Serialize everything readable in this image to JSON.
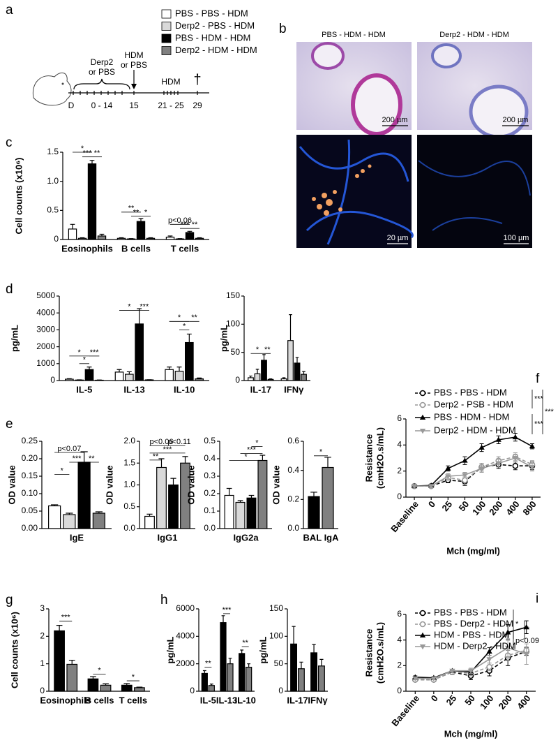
{
  "panel_labels": [
    "a",
    "b",
    "c",
    "d",
    "e",
    "f",
    "g",
    "h",
    "i"
  ],
  "legend": [
    {
      "name": "PBS - PBS - HDM",
      "color": "#ffffff"
    },
    {
      "name": "Derp2 - PBS - HDM",
      "color": "#d9d9d9"
    },
    {
      "name": "PBS - HDM - HDM",
      "color": "#000000"
    },
    {
      "name": "Derp2 - HDM - HDM",
      "color": "#808080"
    }
  ],
  "schematic": {
    "pretreatment": [
      "Derp2",
      "or PBS"
    ],
    "challenge": [
      "HDM",
      "or PBS"
    ],
    "exposure": "HDM",
    "days": [
      "D",
      "0 - 14",
      "15",
      "21 - 25",
      "29"
    ],
    "endpoint": "†"
  },
  "images": {
    "titles": [
      "PBS - HDM - HDM",
      "Derp2 - HDM - HDM"
    ],
    "scale_bars": [
      "200 µm",
      "200 µm",
      "20 µm",
      "100 µm"
    ]
  },
  "chart_data": [
    {
      "type": "bar",
      "ylabel": "Cell counts (x10⁶)",
      "categories": [
        "Eosinophils",
        "B cells",
        "T cells"
      ],
      "series": [
        {
          "color": "#ffffff",
          "values": [
            0.18,
            0.02,
            0.04
          ],
          "errors": [
            0.08,
            0.01,
            0.02
          ]
        },
        {
          "color": "#d9d9d9",
          "values": [
            0.02,
            0.01,
            0.01
          ],
          "errors": [
            0.01,
            0.005,
            0.005
          ]
        },
        {
          "color": "#000000",
          "values": [
            1.3,
            0.31,
            0.12
          ],
          "errors": [
            0.06,
            0.05,
            0.02
          ]
        },
        {
          "color": "#808080",
          "values": [
            0.06,
            0.02,
            0.02
          ],
          "errors": [
            0.03,
            0.01,
            0.01
          ]
        }
      ],
      "ylim": [
        0,
        1.5
      ],
      "yticks": [
        0,
        0.5,
        {
          "value": 1,
          "label": "1.0"
        },
        1.5
      ],
      "annotations": [
        "*",
        "***",
        "**",
        "**",
        "**",
        "*",
        "p<0.06",
        "***",
        "**"
      ]
    },
    {
      "type": "bar",
      "ylabel": "pg/mL",
      "categories": [
        "IL-5",
        "IL-13",
        "IL-10"
      ],
      "series": [
        {
          "color": "#ffffff",
          "values": [
            80,
            500,
            650
          ],
          "errors": [
            30,
            150,
            150
          ]
        },
        {
          "color": "#d9d9d9",
          "values": [
            30,
            370,
            550
          ],
          "errors": [
            10,
            150,
            250
          ]
        },
        {
          "color": "#000000",
          "values": [
            650,
            3350,
            2250
          ],
          "errors": [
            150,
            900,
            500
          ]
        },
        {
          "color": "#808080",
          "values": [
            20,
            40,
            100
          ],
          "errors": [
            10,
            10,
            50
          ]
        }
      ],
      "ylim": [
        0,
        5000
      ],
      "yticks": [
        0,
        1000,
        2000,
        3000,
        4000,
        5000
      ],
      "annotations": [
        "*",
        "*",
        "***",
        "*",
        "***",
        "*",
        "*",
        "**"
      ]
    },
    {
      "type": "bar",
      "ylabel": "pg/mL",
      "categories": [
        "IL-17",
        "IFNγ"
      ],
      "series": [
        {
          "color": "#ffffff",
          "values": [
            5,
            3
          ],
          "errors": [
            3,
            2
          ]
        },
        {
          "color": "#d9d9d9",
          "values": [
            12,
            71
          ],
          "errors": [
            8,
            46
          ]
        },
        {
          "color": "#000000",
          "values": [
            36,
            31
          ],
          "errors": [
            10,
            10
          ]
        },
        {
          "color": "#808080",
          "values": [
            2,
            11
          ],
          "errors": [
            1,
            5
          ]
        }
      ],
      "ylim": [
        0,
        150
      ],
      "yticks": [
        0,
        50,
        100,
        150
      ],
      "annotations": [
        "*",
        "**"
      ]
    },
    {
      "type": "bar",
      "ylabel": "OD value",
      "categories": [
        "IgE"
      ],
      "series": [
        {
          "color": "#ffffff",
          "values": [
            0.065
          ],
          "errors": [
            0.003
          ]
        },
        {
          "color": "#d9d9d9",
          "values": [
            0.04
          ],
          "errors": [
            0.004
          ]
        },
        {
          "color": "#000000",
          "values": [
            0.19
          ],
          "errors": [
            0.03
          ]
        },
        {
          "color": "#808080",
          "values": [
            0.044
          ],
          "errors": [
            0.004
          ]
        }
      ],
      "ylim": [
        0,
        0.25
      ],
      "yticks": [
        {
          "value": 0,
          "label": "0.00"
        },
        0.05,
        {
          "value": 0.1,
          "label": "0.10"
        },
        0.15,
        {
          "value": 0.2,
          "label": "0.20"
        },
        0.25
      ],
      "annotations": [
        "p<0.07",
        "***",
        "**",
        "*"
      ]
    },
    {
      "type": "bar",
      "ylabel": "OD value",
      "categories": [
        "IgG1"
      ],
      "series": [
        {
          "color": "#ffffff",
          "values": [
            0.28
          ],
          "errors": [
            0.05
          ]
        },
        {
          "color": "#d9d9d9",
          "values": [
            1.4
          ],
          "errors": [
            0.2
          ]
        },
        {
          "color": "#000000",
          "values": [
            1.0
          ],
          "errors": [
            0.15
          ]
        },
        {
          "color": "#808080",
          "values": [
            1.5
          ],
          "errors": [
            0.15
          ]
        }
      ],
      "ylim": [
        0,
        2
      ],
      "yticks": [
        {
          "value": 0,
          "label": "0.0"
        },
        0.5,
        {
          "value": 1,
          "label": "1.0"
        },
        1.5,
        {
          "value": 2,
          "label": "2.0"
        }
      ],
      "annotations": [
        "p<0.06",
        "p<0.11",
        "***",
        "**"
      ]
    },
    {
      "type": "bar",
      "ylabel": "OD value",
      "categories": [
        "IgG2a"
      ],
      "series": [
        {
          "color": "#ffffff",
          "values": [
            0.19
          ],
          "errors": [
            0.04
          ]
        },
        {
          "color": "#d9d9d9",
          "values": [
            0.15
          ],
          "errors": [
            0.01
          ]
        },
        {
          "color": "#000000",
          "values": [
            0.175
          ],
          "errors": [
            0.015
          ]
        },
        {
          "color": "#808080",
          "values": [
            0.39
          ],
          "errors": [
            0.03
          ]
        }
      ],
      "ylim": [
        0,
        0.5
      ],
      "yticks": [
        {
          "value": 0,
          "label": "0.0"
        },
        0.1,
        0.2,
        0.3,
        0.4,
        0.5
      ],
      "annotations": [
        "*",
        "***",
        "*"
      ]
    },
    {
      "type": "bar",
      "ylabel": "OD value",
      "categories": [
        "BAL IgA"
      ],
      "series": [
        {
          "color": "#000000",
          "values": [
            0.22
          ],
          "errors": [
            0.03
          ]
        },
        {
          "color": "#808080",
          "values": [
            0.42
          ],
          "errors": [
            0.07
          ]
        }
      ],
      "ylim": [
        0,
        0.6
      ],
      "yticks": [
        {
          "value": 0,
          "label": "0.0"
        },
        0.2,
        0.4,
        0.6
      ],
      "annotations": [
        "*"
      ]
    },
    {
      "type": "line",
      "ylabel": [
        "Resistance",
        "(cmH2O.s/mL)"
      ],
      "xlabel": "Mch (mg/ml)",
      "categories": [
        "Baseline",
        "0",
        "25",
        "50",
        "100",
        "200",
        "400",
        "800"
      ],
      "series": [
        {
          "name": "PBS - PBS - HDM",
          "color": "#000000",
          "marker": "circle-open",
          "dashed": true,
          "values": [
            0.85,
            0.85,
            1.3,
            1.2,
            2.3,
            2.5,
            2.4,
            2.4
          ],
          "errors": [
            0.1,
            0.1,
            0.2,
            0.3,
            0.3,
            0.3,
            0.3,
            0.3
          ]
        },
        {
          "name": "Derp2 - PSB - HDM",
          "color": "#999999",
          "marker": "circle-open",
          "dashed": true,
          "values": [
            0.85,
            0.85,
            1.5,
            1.3,
            2.3,
            2.8,
            3.1,
            2.5
          ],
          "errors": [
            0.1,
            0.1,
            0.2,
            0.3,
            0.3,
            0.3,
            0.3,
            0.3
          ]
        },
        {
          "name": "PBS - HDM - HDM",
          "color": "#000000",
          "marker": "triangle",
          "dashed": false,
          "values": [
            0.85,
            0.9,
            2.2,
            2.8,
            3.8,
            4.4,
            4.6,
            3.9
          ],
          "errors": [
            0.1,
            0.1,
            0.2,
            0.3,
            0.3,
            0.3,
            0.3,
            0.2
          ]
        },
        {
          "name": "Derp2 - HDM - HDM",
          "color": "#999999",
          "marker": "triangle-down",
          "dashed": false,
          "values": [
            0.85,
            0.85,
            1.6,
            1.7,
            2.2,
            2.6,
            3.0,
            2.3
          ],
          "errors": [
            0.1,
            0.1,
            0.2,
            0.2,
            0.3,
            0.3,
            0.3,
            0.3
          ]
        }
      ],
      "ylim": [
        0,
        6
      ],
      "yticks": [
        0,
        2,
        4,
        6
      ],
      "annotations": [
        "***",
        "***",
        "***"
      ]
    },
    {
      "type": "bar",
      "ylabel": "Cell counts (x10⁶)",
      "categories": [
        "Eosinophils",
        "B cells",
        "T cells"
      ],
      "series": [
        {
          "color": "#000000",
          "values": [
            2.2,
            0.45,
            0.22
          ],
          "errors": [
            0.2,
            0.08,
            0.06
          ]
        },
        {
          "color": "#808080",
          "values": [
            0.98,
            0.22,
            0.13
          ],
          "errors": [
            0.15,
            0.05,
            0.02
          ]
        }
      ],
      "ylim": [
        0,
        3
      ],
      "yticks": [
        0,
        1,
        2,
        3
      ],
      "annotations": [
        "***",
        "*",
        "*"
      ]
    },
    {
      "type": "bar",
      "ylabel": "pg/mL",
      "categories": [
        "IL-5",
        "IL-13",
        "IL-10"
      ],
      "series": [
        {
          "color": "#000000",
          "values": [
            1300,
            5000,
            2750
          ],
          "errors": [
            200,
            500,
            250
          ]
        },
        {
          "color": "#808080",
          "values": [
            420,
            2000,
            1750
          ],
          "errors": [
            100,
            400,
            250
          ]
        }
      ],
      "ylim": [
        0,
        6000
      ],
      "yticks": [
        0,
        2000,
        4000,
        6000
      ],
      "annotations": [
        "**",
        "***",
        "**"
      ]
    },
    {
      "type": "bar",
      "ylabel": "pg/mL",
      "categories": [
        "IL-17",
        "IFNγ"
      ],
      "series": [
        {
          "color": "#000000",
          "values": [
            86,
            70
          ],
          "errors": [
            32,
            15
          ]
        },
        {
          "color": "#808080",
          "values": [
            41,
            46
          ],
          "errors": [
            12,
            12
          ]
        }
      ],
      "ylim": [
        0,
        150
      ],
      "yticks": [
        0,
        50,
        100,
        150
      ]
    },
    {
      "type": "line",
      "ylabel": [
        "Resistance",
        "(cmH2O.s/mL)"
      ],
      "xlabel": "Mch (mg/ml)",
      "categories": [
        "Baseline",
        "0",
        "25",
        "50",
        "100",
        "200",
        "400"
      ],
      "series": [
        {
          "name": "PBS - PBS - HDM",
          "color": "#000000",
          "marker": "circle-open",
          "dashed": true,
          "values": [
            0.9,
            0.9,
            1.5,
            1.2,
            1.6,
            2.6,
            3.1
          ],
          "errors": [
            0.1,
            0.1,
            0.2,
            0.3,
            0.4,
            0.6,
            0.3
          ]
        },
        {
          "name": "PBS - Derp2 - HDM",
          "color": "#999999",
          "marker": "circle-open",
          "dashed": true,
          "values": [
            0.9,
            0.9,
            1.5,
            1.4,
            1.9,
            2.8,
            3.2
          ],
          "errors": [
            0.1,
            0.1,
            0.2,
            0.2,
            0.3,
            0.4,
            0.3
          ]
        },
        {
          "name": "HDM - PBS - HDM",
          "color": "#000000",
          "marker": "triangle",
          "dashed": false,
          "values": [
            1.1,
            1.05,
            1.6,
            1.5,
            3.1,
            4.6,
            5.0
          ],
          "errors": [
            0.1,
            0.1,
            0.1,
            0.2,
            0.3,
            0.6,
            0.5
          ]
        },
        {
          "name": "HDM - Derp2 - HDM",
          "color": "#999999",
          "marker": "triangle-down",
          "dashed": false,
          "values": [
            1.0,
            1.0,
            1.6,
            1.6,
            2.5,
            3.4,
            2.9
          ],
          "errors": [
            0.1,
            0.1,
            0.1,
            0.2,
            0.3,
            0.7,
            0.8
          ]
        }
      ],
      "ylim": [
        0,
        6
      ],
      "yticks": [
        0,
        2,
        4,
        6
      ],
      "annotations": [
        "*",
        "*",
        "p<0.09"
      ]
    }
  ]
}
